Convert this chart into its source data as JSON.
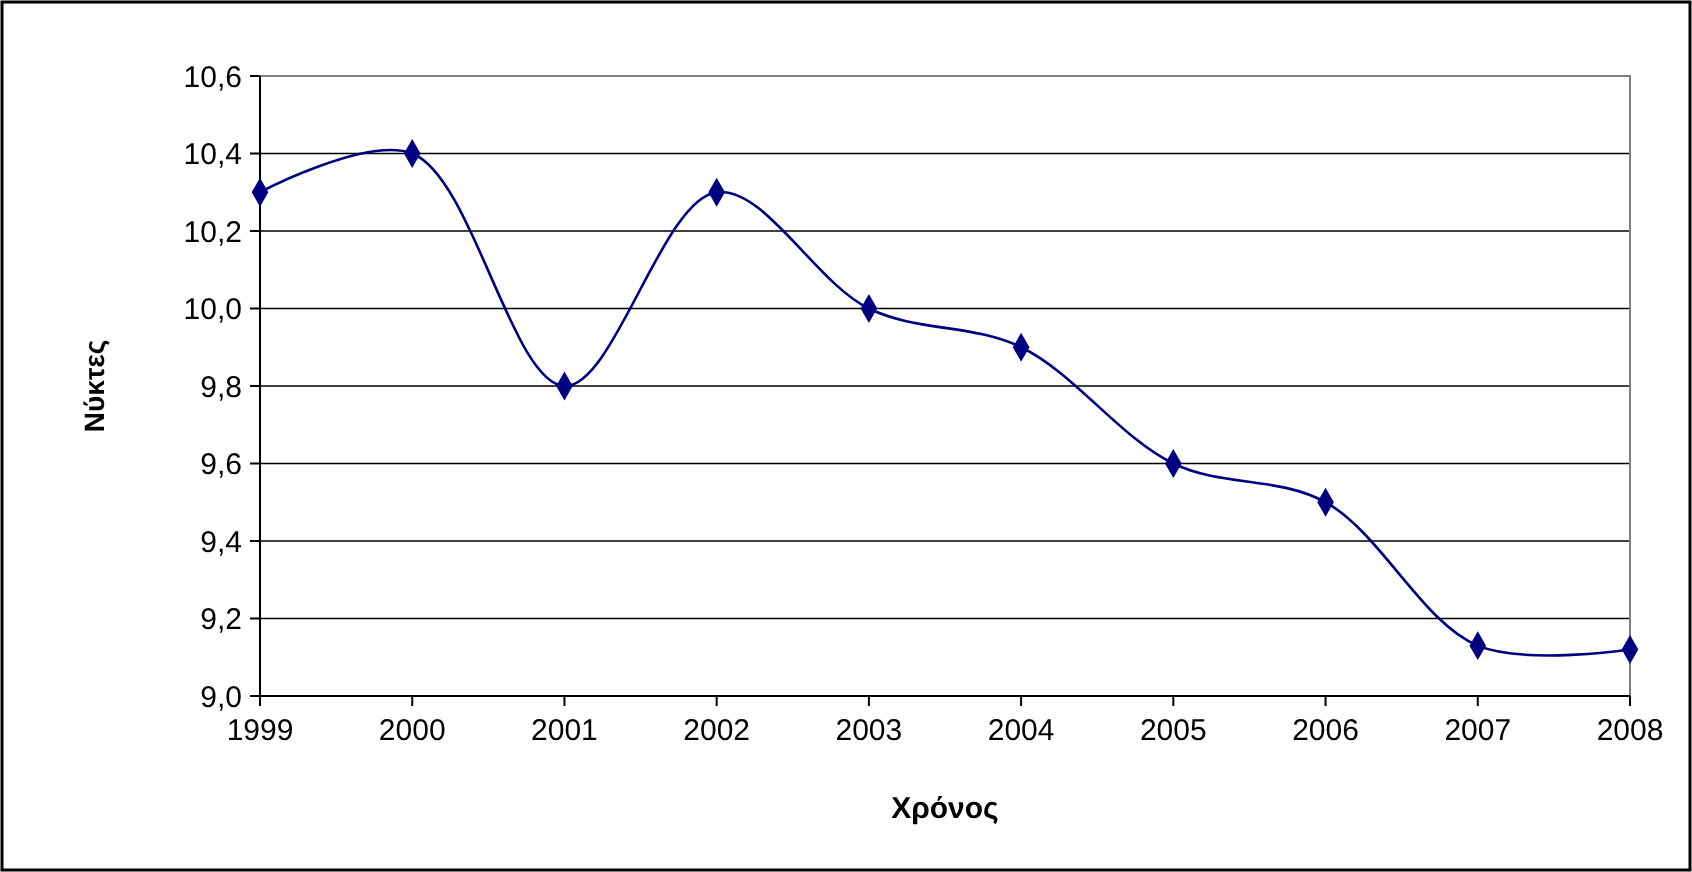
{
  "chart_data": {
    "type": "line",
    "xlabel": "Χρόνος",
    "ylabel": "Νύκτες",
    "x": [
      1999,
      2000,
      2001,
      2002,
      2003,
      2004,
      2005,
      2006,
      2007,
      2008
    ],
    "series": [
      {
        "color": "#000080",
        "values": [
          10.3,
          10.4,
          9.8,
          10.3,
          10.0,
          9.9,
          9.6,
          9.5,
          9.13,
          9.12
        ]
      }
    ],
    "xlim": [
      1999,
      2008
    ],
    "xticks": [
      1999,
      2000,
      2001,
      2002,
      2003,
      2004,
      2005,
      2006,
      2007,
      2008
    ],
    "ylim": [
      9.0,
      10.6
    ],
    "yticks": [
      {
        "value": 9.0,
        "label": "9,0"
      },
      {
        "value": 9.2,
        "label": "9,2"
      },
      {
        "value": 9.4,
        "label": "9,4"
      },
      {
        "value": 9.6,
        "label": "9,6"
      },
      {
        "value": 9.8,
        "label": "9,8"
      },
      {
        "value": 10.0,
        "label": "10,0"
      },
      {
        "value": 10.2,
        "label": "10,2"
      },
      {
        "value": 10.4,
        "label": "10,4"
      },
      {
        "value": 10.6,
        "label": "10,6"
      }
    ],
    "grid": "y",
    "marker": "diamond",
    "line_style": "solid"
  }
}
